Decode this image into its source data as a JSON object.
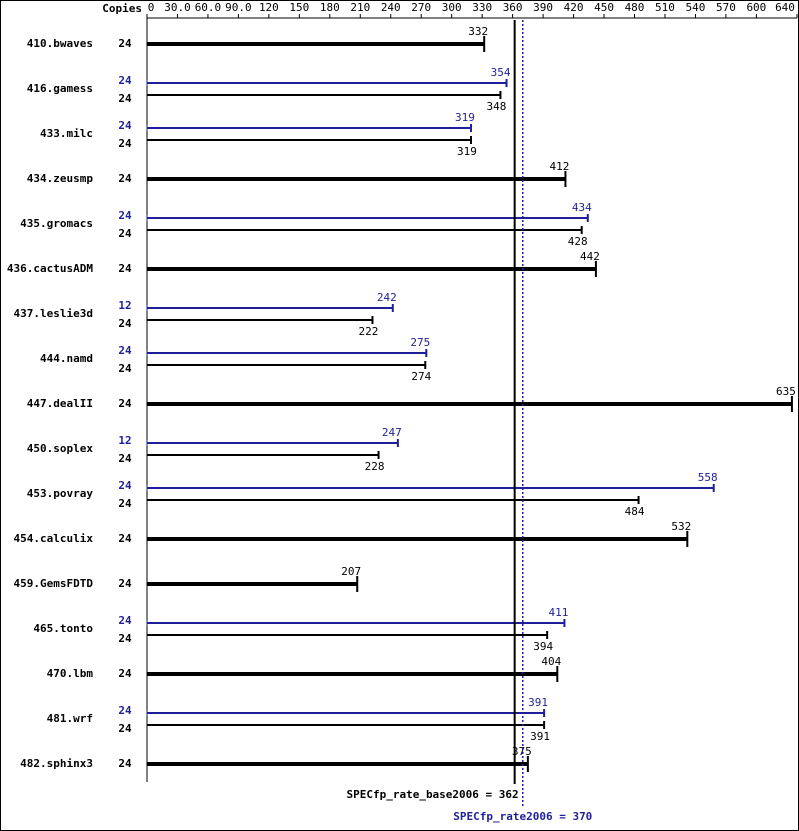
{
  "chart_data": {
    "type": "spec-rate",
    "copies_label": "Copies",
    "xlim": [
      0,
      640
    ],
    "xticks": [
      0,
      {
        "value": 30,
        "label": "30.0"
      },
      {
        "value": 60,
        "label": "60.0"
      },
      {
        "value": 90,
        "label": "90.0"
      },
      120,
      150,
      180,
      210,
      240,
      270,
      300,
      330,
      360,
      390,
      420,
      450,
      480,
      510,
      540,
      570,
      600,
      640
    ],
    "base_color": "#000000",
    "peak_color": "#1f1f99",
    "benchmarks": [
      {
        "name": "410.bwaves",
        "base": {
          "copies": 24,
          "value": 332
        }
      },
      {
        "name": "416.gamess",
        "peak": {
          "copies": 24,
          "value": 354
        },
        "base": {
          "copies": 24,
          "value": 348
        }
      },
      {
        "name": "433.milc",
        "peak": {
          "copies": 24,
          "value": 319
        },
        "base": {
          "copies": 24,
          "value": 319
        }
      },
      {
        "name": "434.zeusmp",
        "base": {
          "copies": 24,
          "value": 412
        }
      },
      {
        "name": "435.gromacs",
        "peak": {
          "copies": 24,
          "value": 434
        },
        "base": {
          "copies": 24,
          "value": 428
        }
      },
      {
        "name": "436.cactusADM",
        "base": {
          "copies": 24,
          "value": 442
        }
      },
      {
        "name": "437.leslie3d",
        "peak": {
          "copies": 12,
          "value": 242
        },
        "base": {
          "copies": 24,
          "value": 222
        }
      },
      {
        "name": "444.namd",
        "peak": {
          "copies": 24,
          "value": 275
        },
        "base": {
          "copies": 24,
          "value": 274
        }
      },
      {
        "name": "447.dealII",
        "base": {
          "copies": 24,
          "value": 635
        }
      },
      {
        "name": "450.soplex",
        "peak": {
          "copies": 12,
          "value": 247
        },
        "base": {
          "copies": 24,
          "value": 228
        }
      },
      {
        "name": "453.povray",
        "peak": {
          "copies": 24,
          "value": 558
        },
        "base": {
          "copies": 24,
          "value": 484
        }
      },
      {
        "name": "454.calculix",
        "base": {
          "copies": 24,
          "value": 532
        }
      },
      {
        "name": "459.GemsFDTD",
        "base": {
          "copies": 24,
          "value": 207
        }
      },
      {
        "name": "465.tonto",
        "peak": {
          "copies": 24,
          "value": 411
        },
        "base": {
          "copies": 24,
          "value": 394
        }
      },
      {
        "name": "470.lbm",
        "base": {
          "copies": 24,
          "value": 404
        }
      },
      {
        "name": "481.wrf",
        "peak": {
          "copies": 24,
          "value": 391
        },
        "base": {
          "copies": 24,
          "value": 391
        }
      },
      {
        "name": "482.sphinx3",
        "base": {
          "copies": 24,
          "value": 375
        }
      }
    ],
    "reference_lines": [
      {
        "label": "SPECfp_rate_base2006 = 362",
        "value": 362,
        "color": "#000000",
        "style": "solid"
      },
      {
        "label": "SPECfp_rate2006 = 370",
        "value": 370,
        "color": "#1f1f99",
        "style": "dotted"
      }
    ]
  }
}
